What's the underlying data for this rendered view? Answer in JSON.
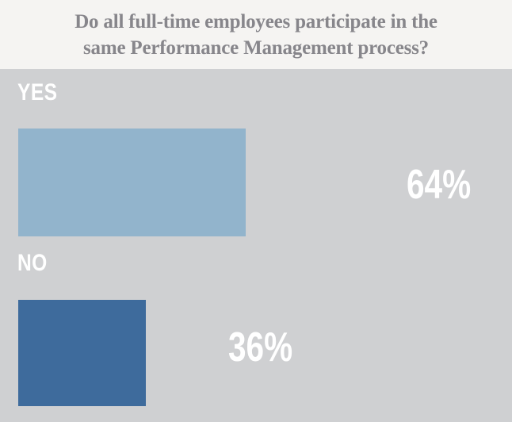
{
  "header": {
    "title_lines": [
      "Do all full-time employees participate in the",
      "same Performance Management process?"
    ]
  },
  "chart_data": {
    "type": "bar",
    "orientation": "horizontal",
    "title": "Do all full-time employees participate in the same Performance Management process?",
    "categories": [
      "YES",
      "NO"
    ],
    "values": [
      64,
      36
    ],
    "value_labels": [
      "64%",
      "36%"
    ],
    "xlim": [
      0,
      100
    ],
    "bar_colors": [
      "#92b4cc",
      "#3e6b9c"
    ],
    "grid": false,
    "legend": "none",
    "value_label_position": "right-of-bar"
  },
  "colors": {
    "chart_background": "#cfd0d2",
    "title_background": "#f5f4f2",
    "title_text": "#87868b",
    "label_text": "#ffffff"
  }
}
